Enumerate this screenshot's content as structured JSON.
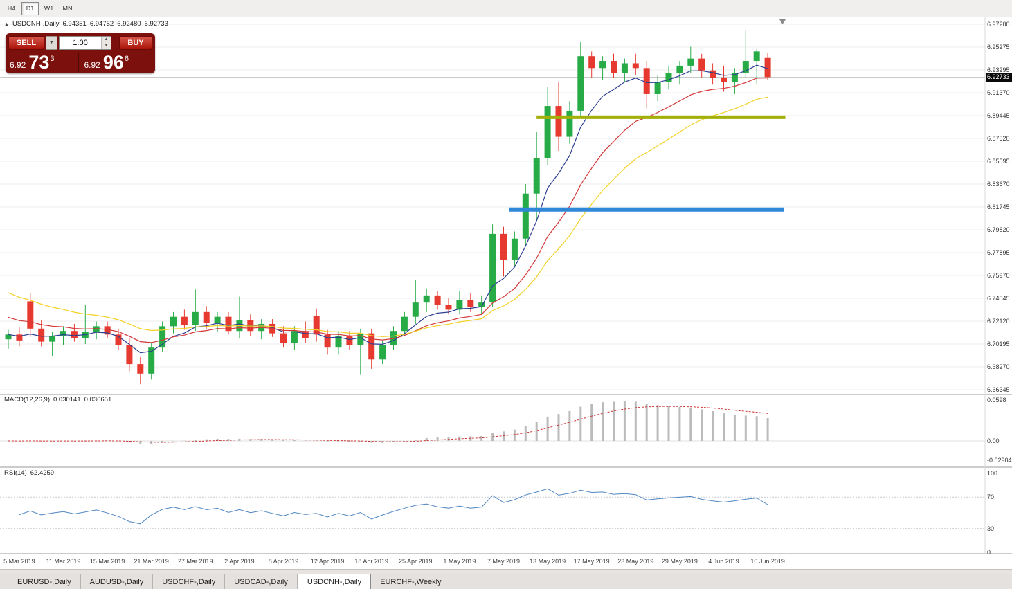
{
  "toolbar": {
    "timeframes": [
      "H4",
      "D1",
      "W1",
      "MN"
    ],
    "active": "D1"
  },
  "chart_header": {
    "title": "USDCNH-,Daily",
    "open": "6.94351",
    "high": "6.94752",
    "low": "6.92480",
    "close": "6.92733"
  },
  "trade_panel": {
    "sell_label": "SELL",
    "buy_label": "BUY",
    "volume": "1.00",
    "sell_price_small": "6.92",
    "sell_price_big": "73",
    "sell_price_sup": "3",
    "buy_price_small": "6.92",
    "buy_price_big": "96",
    "buy_price_sup": "6"
  },
  "price_axis": {
    "ticks": [
      "6.97200",
      "6.95275",
      "6.93295",
      "6.91370",
      "6.89445",
      "6.87520",
      "6.85595",
      "6.83670",
      "6.81745",
      "6.79820",
      "6.77895",
      "6.75970",
      "6.74045",
      "6.72120",
      "6.70195",
      "6.68270",
      "6.66345"
    ],
    "current": "6.92733"
  },
  "macd_panel": {
    "name": "MACD(12,26,9)",
    "value": "0.030141",
    "signal": "0.036651",
    "axis_labels": [
      "0.0598",
      "0.00",
      "-0.02904"
    ]
  },
  "rsi_panel": {
    "name": "RSI(14)",
    "value": "62.4259",
    "axis_labels": [
      "100",
      "70",
      "30",
      "0"
    ]
  },
  "date_axis": {
    "labels": [
      {
        "text": "5 Mar 2019",
        "i": 1
      },
      {
        "text": "11 Mar 2019",
        "i": 5
      },
      {
        "text": "15 Mar 2019",
        "i": 9
      },
      {
        "text": "21 Mar 2019",
        "i": 13
      },
      {
        "text": "27 Mar 2019",
        "i": 17
      },
      {
        "text": "2 Apr 2019",
        "i": 21
      },
      {
        "text": "8 Apr 2019",
        "i": 25
      },
      {
        "text": "12 Apr 2019",
        "i": 29
      },
      {
        "text": "18 Apr 2019",
        "i": 33
      },
      {
        "text": "25 Apr 2019",
        "i": 37
      },
      {
        "text": "1 May 2019",
        "i": 41
      },
      {
        "text": "7 May 2019",
        "i": 45
      },
      {
        "text": "13 May 2019",
        "i": 49
      },
      {
        "text": "17 May 2019",
        "i": 53
      },
      {
        "text": "23 May 2019",
        "i": 57
      },
      {
        "text": "29 May 2019",
        "i": 61
      },
      {
        "text": "4 Jun 2019",
        "i": 65
      },
      {
        "text": "10 Jun 2019",
        "i": 69
      }
    ]
  },
  "tabs": {
    "items": [
      {
        "label": "EURUSD-,Daily"
      },
      {
        "label": "AUDUSD-,Daily"
      },
      {
        "label": "USDCHF-,Daily"
      },
      {
        "label": "USDCAD-,Daily"
      },
      {
        "label": "USDCNH-,Daily"
      },
      {
        "label": "EURCHF-,Weekly"
      }
    ],
    "active_index": 4
  },
  "chart_data": {
    "type": "candlestick",
    "symbol": "USDCNH-",
    "timeframe": "Daily",
    "price_range": {
      "top": 6.972,
      "bottom": 6.66345
    },
    "last_bar": {
      "open": 6.94351,
      "high": 6.94752,
      "low": 6.9248,
      "close": 6.92733
    },
    "candles": [
      [
        6.706,
        6.714,
        6.698,
        6.71
      ],
      [
        6.71,
        6.716,
        6.7,
        6.705
      ],
      [
        6.738,
        6.745,
        6.708,
        6.715
      ],
      [
        6.715,
        6.722,
        6.7,
        6.704
      ],
      [
        6.704,
        6.712,
        6.692,
        6.709
      ],
      [
        6.709,
        6.717,
        6.701,
        6.713
      ],
      [
        6.713,
        6.719,
        6.704,
        6.707
      ],
      [
        6.707,
        6.735,
        6.702,
        6.712
      ],
      [
        6.712,
        6.721,
        6.706,
        6.717
      ],
      [
        6.717,
        6.721,
        6.707,
        6.71
      ],
      [
        6.71,
        6.715,
        6.697,
        6.701
      ],
      [
        6.701,
        6.707,
        6.679,
        6.685
      ],
      [
        6.685,
        6.691,
        6.668,
        6.677
      ],
      [
        6.677,
        6.703,
        6.672,
        6.699
      ],
      [
        6.699,
        6.721,
        6.695,
        6.717
      ],
      [
        6.717,
        6.729,
        6.711,
        6.725
      ],
      [
        6.725,
        6.731,
        6.714,
        6.718
      ],
      [
        6.718,
        6.748,
        6.713,
        6.729
      ],
      [
        6.729,
        6.734,
        6.715,
        6.72
      ],
      [
        6.72,
        6.729,
        6.712,
        6.725
      ],
      [
        6.725,
        6.729,
        6.71,
        6.713
      ],
      [
        6.713,
        6.742,
        6.707,
        6.722
      ],
      [
        6.722,
        6.727,
        6.709,
        6.713
      ],
      [
        6.713,
        6.723,
        6.706,
        6.719
      ],
      [
        6.719,
        6.723,
        6.708,
        6.711
      ],
      [
        6.711,
        6.717,
        6.699,
        6.703
      ],
      [
        6.703,
        6.717,
        6.697,
        6.713
      ],
      [
        6.713,
        6.721,
        6.703,
        6.707
      ],
      [
        6.726,
        6.732,
        6.704,
        6.71
      ],
      [
        6.71,
        6.714,
        6.693,
        6.699
      ],
      [
        6.699,
        6.713,
        6.693,
        6.709
      ],
      [
        6.709,
        6.713,
        6.697,
        6.701
      ],
      [
        6.701,
        6.715,
        6.676,
        6.711
      ],
      [
        6.711,
        6.715,
        6.681,
        6.689
      ],
      [
        6.689,
        6.705,
        6.685,
        6.701
      ],
      [
        6.701,
        6.717,
        6.697,
        6.713
      ],
      [
        6.713,
        6.729,
        6.709,
        6.725
      ],
      [
        6.725,
        6.756,
        6.719,
        6.737
      ],
      [
        6.737,
        6.749,
        6.729,
        6.743
      ],
      [
        6.743,
        6.747,
        6.731,
        6.735
      ],
      [
        6.735,
        6.741,
        6.727,
        6.731
      ],
      [
        6.731,
        6.747,
        6.727,
        6.739
      ],
      [
        6.739,
        6.745,
        6.729,
        6.733
      ],
      [
        6.733,
        6.743,
        6.727,
        6.737
      ],
      [
        6.737,
        6.803,
        6.733,
        6.795
      ],
      [
        6.795,
        6.801,
        6.759,
        6.773
      ],
      [
        6.773,
        6.797,
        6.767,
        6.791
      ],
      [
        6.791,
        6.837,
        6.785,
        6.829
      ],
      [
        6.829,
        6.881,
        6.805,
        6.859
      ],
      [
        6.859,
        6.919,
        6.853,
        6.903
      ],
      [
        6.903,
        6.923,
        6.865,
        6.877
      ],
      [
        6.877,
        6.907,
        6.871,
        6.899
      ],
      [
        6.899,
        6.957,
        6.895,
        6.945
      ],
      [
        6.945,
        6.949,
        6.927,
        6.935
      ],
      [
        6.935,
        6.945,
        6.925,
        6.941
      ],
      [
        6.941,
        6.947,
        6.927,
        6.931
      ],
      [
        6.931,
        6.943,
        6.923,
        6.939
      ],
      [
        6.939,
        6.947,
        6.929,
        6.935
      ],
      [
        6.935,
        6.941,
        6.901,
        6.913
      ],
      [
        6.913,
        6.929,
        6.907,
        6.923
      ],
      [
        6.923,
        6.937,
        6.917,
        6.931
      ],
      [
        6.931,
        6.941,
        6.921,
        6.937
      ],
      [
        6.937,
        6.953,
        6.931,
        6.943
      ],
      [
        6.943,
        6.947,
        6.927,
        6.933
      ],
      [
        6.933,
        6.939,
        6.921,
        6.927
      ],
      [
        6.927,
        6.937,
        6.915,
        6.923
      ],
      [
        6.923,
        6.935,
        6.913,
        6.931
      ],
      [
        6.931,
        6.967,
        6.927,
        6.941
      ],
      [
        6.941,
        6.951,
        6.921,
        6.949
      ],
      [
        6.94351,
        6.94752,
        6.9248,
        6.92733
      ]
    ],
    "moving_averages": [
      {
        "name": "fast",
        "period": 6,
        "seed": null,
        "color": "#2c3e90"
      },
      {
        "name": "mid",
        "period": 13,
        "seed": 6.727,
        "color": "#d23838"
      },
      {
        "name": "slow",
        "period": 20,
        "seed": 6.749,
        "color": "#f2d126"
      }
    ],
    "hlines": [
      {
        "name": "resistance-line",
        "price": 6.8935,
        "from_index": 48.0,
        "to_index": 70.6,
        "color": "#a2b007",
        "width": 5
      },
      {
        "name": "support-line",
        "price": 6.8155,
        "from_index": 45.5,
        "to_index": 70.5,
        "color": "#2f87d8",
        "width": 6
      }
    ],
    "macd": {
      "params": "12,26,9",
      "value": 0.030141,
      "signal_value": 0.036651,
      "axis_max": 0.0598,
      "axis_min": -0.02904,
      "hist_color": "#bbbbbb",
      "signal_color": "#cc3333"
    },
    "rsi": {
      "period": 14,
      "value": 62.4259,
      "levels": [
        70,
        30
      ],
      "axis": [
        100,
        70,
        30,
        0
      ],
      "color": "#4f86c0"
    },
    "colors": {
      "bull": "#27ab47",
      "bear": "#e6392f",
      "grid": "#ededed"
    }
  }
}
